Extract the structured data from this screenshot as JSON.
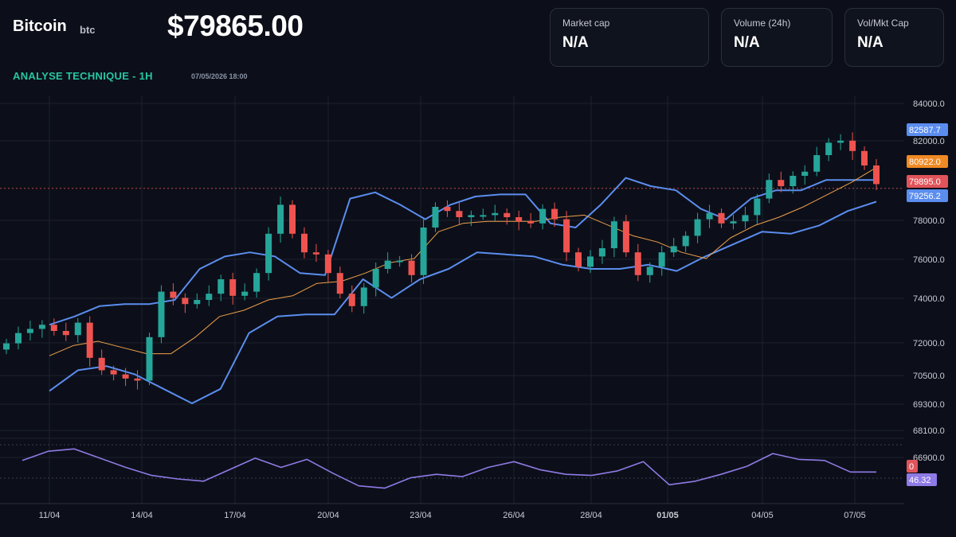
{
  "header": {
    "name": "Bitcoin",
    "ticker": "btc",
    "price": "$79865.00",
    "analysis_title": "ANALYSE TECHNIQUE - 1H",
    "analysis_date": "07/05/2026 18:00"
  },
  "stats": [
    {
      "label": "Market cap",
      "value": "N/A"
    },
    {
      "label": "Volume (24h)",
      "value": "N/A"
    },
    {
      "label": "Vol/Mkt Cap",
      "value": "N/A"
    }
  ],
  "colors": {
    "background": "#0c0f19",
    "bull": "#26a69a",
    "bear": "#ef5350",
    "bollinger": "#5b8def",
    "ma": "#f0a04b",
    "rsi": "#8f7ae6",
    "accent": "#26c6a3"
  },
  "chart_data": {
    "type": "candlestick",
    "x_tick_labels": [
      "11/04",
      "14/04",
      "17/04",
      "20/04",
      "23/04",
      "26/04",
      "28/04",
      "01/05",
      "04/05",
      "07/05"
    ],
    "y_tick_labels": [
      "84000.0",
      "82000.0",
      "78000.0",
      "76000.0",
      "74000.0",
      "72000.0",
      "70500.0",
      "69300.0",
      "68100.0",
      "66900.0"
    ],
    "grid": true,
    "indicators": [
      "Bollinger Bands",
      "Moving Average",
      "RSI"
    ],
    "last_values": {
      "upper_band": "82587.7",
      "moving_average": "80922.0",
      "last_price": "79895.0",
      "lower_band": "79256.2",
      "rsi_zero": "0",
      "rsi": "46.32"
    },
    "closes": [
      72400,
      72900,
      73100,
      73300,
      73000,
      72800,
      73400,
      71700,
      71100,
      70900,
      70700,
      70600,
      72700,
      74900,
      74600,
      74300,
      74500,
      74800,
      75500,
      74700,
      74900,
      75800,
      77700,
      79100,
      77700,
      76800,
      76700,
      75800,
      74800,
      74200,
      75100,
      76000,
      76400,
      76400,
      75700,
      78000,
      79000,
      78800,
      78500,
      78600,
      78600,
      78700,
      78500,
      78300,
      78200,
      78900,
      78400,
      76800,
      76100,
      76600,
      77000,
      78300,
      76800,
      75700,
      76100,
      76800,
      77100,
      77600,
      78400,
      78700,
      78200,
      78300,
      78600,
      79400,
      80300,
      80000,
      80500,
      80700,
      81500,
      82100,
      82200,
      81700,
      81000,
      80100
    ],
    "upper_band": [
      73300,
      73700,
      74200,
      74300,
      74300,
      74500,
      76000,
      76600,
      76800,
      76600,
      75800,
      75700,
      79400,
      79700,
      79100,
      78400,
      79100,
      79500,
      79600,
      79600,
      78200,
      78000,
      79100,
      80400,
      80000,
      79800,
      78900,
      78400,
      79400,
      79800,
      79800,
      80300,
      80300,
      80300
    ],
    "moving_average": [
      71800,
      72300,
      72500,
      72200,
      71900,
      71900,
      72700,
      73700,
      74000,
      74500,
      74700,
      75300,
      75400,
      75800,
      76300,
      76500,
      77800,
      78200,
      78300,
      78300,
      78300,
      78500,
      78600,
      78100,
      77600,
      77300,
      76800,
      76500,
      77500,
      78100,
      78500,
      79000,
      79600,
      80200,
      80900
    ],
    "lower_band": [
      70100,
      71100,
      71300,
      70900,
      70200,
      69500,
      70200,
      72900,
      73700,
      73800,
      73800,
      75500,
      74600,
      75500,
      76000,
      76800,
      76700,
      76600,
      76200,
      76000,
      76000,
      76200,
      75900,
      76600,
      77200,
      77800,
      77700,
      78100,
      78800,
      79250
    ],
    "rsi": [
      56,
      64,
      66,
      58,
      50,
      43,
      40,
      38,
      48,
      58,
      50,
      57,
      45,
      34,
      32,
      41,
      44,
      42,
      50,
      55,
      48,
      44,
      43,
      47,
      55,
      35,
      38,
      44,
      51,
      62,
      57,
      56,
      46,
      46
    ]
  }
}
